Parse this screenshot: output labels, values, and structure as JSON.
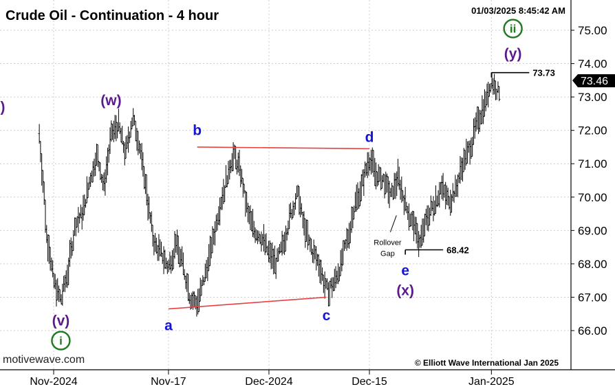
{
  "chart_data": {
    "type": "bar",
    "style": "ohlc",
    "title": "Crude Oil - Continuation - 4 hour",
    "timestamp": "01/03/2025 8:45:42 AM",
    "ylim": [
      65,
      75.5
    ],
    "yticks": [
      "66.00",
      "67.00",
      "68.00",
      "69.00",
      "70.00",
      "71.00",
      "72.00",
      "73.00",
      "74.00",
      "75.00"
    ],
    "xticks": [
      "Nov-2024",
      "Nov-17",
      "Dec-2024",
      "Dec-15",
      "Jan-2025"
    ],
    "grid": true,
    "last_price": "73.46",
    "price_path": [
      [
        "Oct-30",
        70.0
      ],
      [
        "Oct-30",
        71.9
      ],
      [
        "Oct-31",
        68.9
      ],
      [
        "Nov-01",
        67.5
      ],
      [
        "Nov-02",
        66.9
      ],
      [
        "Nov-03",
        67.8
      ],
      [
        "Nov-04",
        69.2
      ],
      [
        "Nov-05",
        69.5
      ],
      [
        "Nov-06",
        70.5
      ],
      [
        "Nov-07",
        71.3
      ],
      [
        "Nov-08",
        70.3
      ],
      [
        "Nov-09",
        71.8
      ],
      [
        "Nov-10",
        72.2
      ],
      [
        "Nov-11",
        71.3
      ],
      [
        "Nov-12",
        72.4
      ],
      [
        "Nov-13",
        71.5
      ],
      [
        "Nov-14",
        70.0
      ],
      [
        "Nov-15",
        68.6
      ],
      [
        "Nov-16",
        68.3
      ],
      [
        "Nov-17",
        67.9
      ],
      [
        "Nov-18",
        68.6
      ],
      [
        "Nov-19",
        68.0
      ],
      [
        "Nov-20",
        67.0
      ],
      [
        "Nov-21",
        66.8
      ],
      [
        "Nov-22",
        67.6
      ],
      [
        "Nov-23",
        68.5
      ],
      [
        "Nov-24",
        69.6
      ],
      [
        "Nov-25",
        70.5
      ],
      [
        "Nov-26",
        71.3
      ],
      [
        "Nov-27",
        70.8
      ],
      [
        "Nov-28",
        69.5
      ],
      [
        "Nov-29",
        69.0
      ],
      [
        "Nov-30",
        68.8
      ],
      [
        "Dec-01",
        68.3
      ],
      [
        "Dec-02",
        68.0
      ],
      [
        "Dec-03",
        68.6
      ],
      [
        "Dec-04",
        69.5
      ],
      [
        "Dec-05",
        70.1
      ],
      [
        "Dec-06",
        69.0
      ],
      [
        "Dec-07",
        68.4
      ],
      [
        "Dec-08",
        68.0
      ],
      [
        "Dec-09",
        67.2
      ],
      [
        "Dec-10",
        67.4
      ],
      [
        "Dec-11",
        68.0
      ],
      [
        "Dec-12",
        68.8
      ],
      [
        "Dec-13",
        69.8
      ],
      [
        "Dec-14",
        70.4
      ],
      [
        "Dec-15",
        71.2
      ],
      [
        "Dec-16",
        70.6
      ],
      [
        "Dec-17",
        70.5
      ],
      [
        "Dec-18",
        70.0
      ],
      [
        "Dec-19",
        70.6
      ],
      [
        "Dec-20",
        69.8
      ],
      [
        "Dec-21",
        69.2
      ],
      [
        "Dec-22",
        68.6
      ],
      [
        "Dec-23",
        69.4
      ],
      [
        "Dec-24",
        69.8
      ],
      [
        "Dec-25",
        70.3
      ],
      [
        "Dec-26",
        69.9
      ],
      [
        "Dec-27",
        70.2
      ],
      [
        "Dec-28",
        71.0
      ],
      [
        "Dec-29",
        71.5
      ],
      [
        "Dec-30",
        72.2
      ],
      [
        "Dec-31",
        72.8
      ],
      [
        "Jan-01",
        73.5
      ],
      [
        "Jan-02",
        73.1
      ],
      [
        "Jan-03",
        73.4
      ]
    ],
    "wave_labels": [
      {
        "text": "(w)",
        "date": "Nov-09",
        "value": 72.9,
        "color": "purple"
      },
      {
        "text": "(v)",
        "date": "Nov-02",
        "value": 66.3,
        "color": "purple"
      },
      {
        "text": "a",
        "date": "Nov-17",
        "value": 66.15,
        "color": "blue"
      },
      {
        "text": "b",
        "date": "Nov-21",
        "value": 72.0,
        "color": "blue"
      },
      {
        "text": "c",
        "date": "Dec-09",
        "value": 66.45,
        "color": "blue"
      },
      {
        "text": "d",
        "date": "Dec-15",
        "value": 71.8,
        "color": "blue"
      },
      {
        "text": "e",
        "date": "Dec-20",
        "value": 67.8,
        "color": "blue"
      },
      {
        "text": "(x)",
        "date": "Dec-20",
        "value": 67.2,
        "color": "purple"
      },
      {
        "text": "(y)",
        "date": "Jan-04",
        "value": 74.3,
        "color": "purple"
      },
      {
        "text": ")",
        "date": "Oct-30",
        "value": 72.7,
        "color": "purple"
      }
    ],
    "circle_labels": [
      {
        "text": "i",
        "date": "Nov-02",
        "value": 65.7
      },
      {
        "text": "ii",
        "date": "Jan-04",
        "value": 75.05
      }
    ],
    "trendlines": [
      {
        "from": [
          "Nov-17",
          66.65
        ],
        "to": [
          "Dec-09",
          67.0
        ],
        "color": "#e84040"
      },
      {
        "from": [
          "Nov-21",
          71.5
        ],
        "to": [
          "Dec-15",
          71.45
        ],
        "color": "#e84040"
      }
    ],
    "levels": [
      {
        "label": "73.73",
        "value": 73.73,
        "date_from": "Jan-01"
      },
      {
        "label": "68.42",
        "value": 68.42,
        "date_from": "Dec-20"
      }
    ],
    "annotations": [
      {
        "text": "Rollover",
        "date": "Dec-16",
        "value": 68.65
      },
      {
        "text": "Gap",
        "date": "Dec-16",
        "value": 68.32
      }
    ]
  },
  "credits": {
    "source": "motivewave.com",
    "copyright": "© Elliott Wave International Jan 2025"
  }
}
